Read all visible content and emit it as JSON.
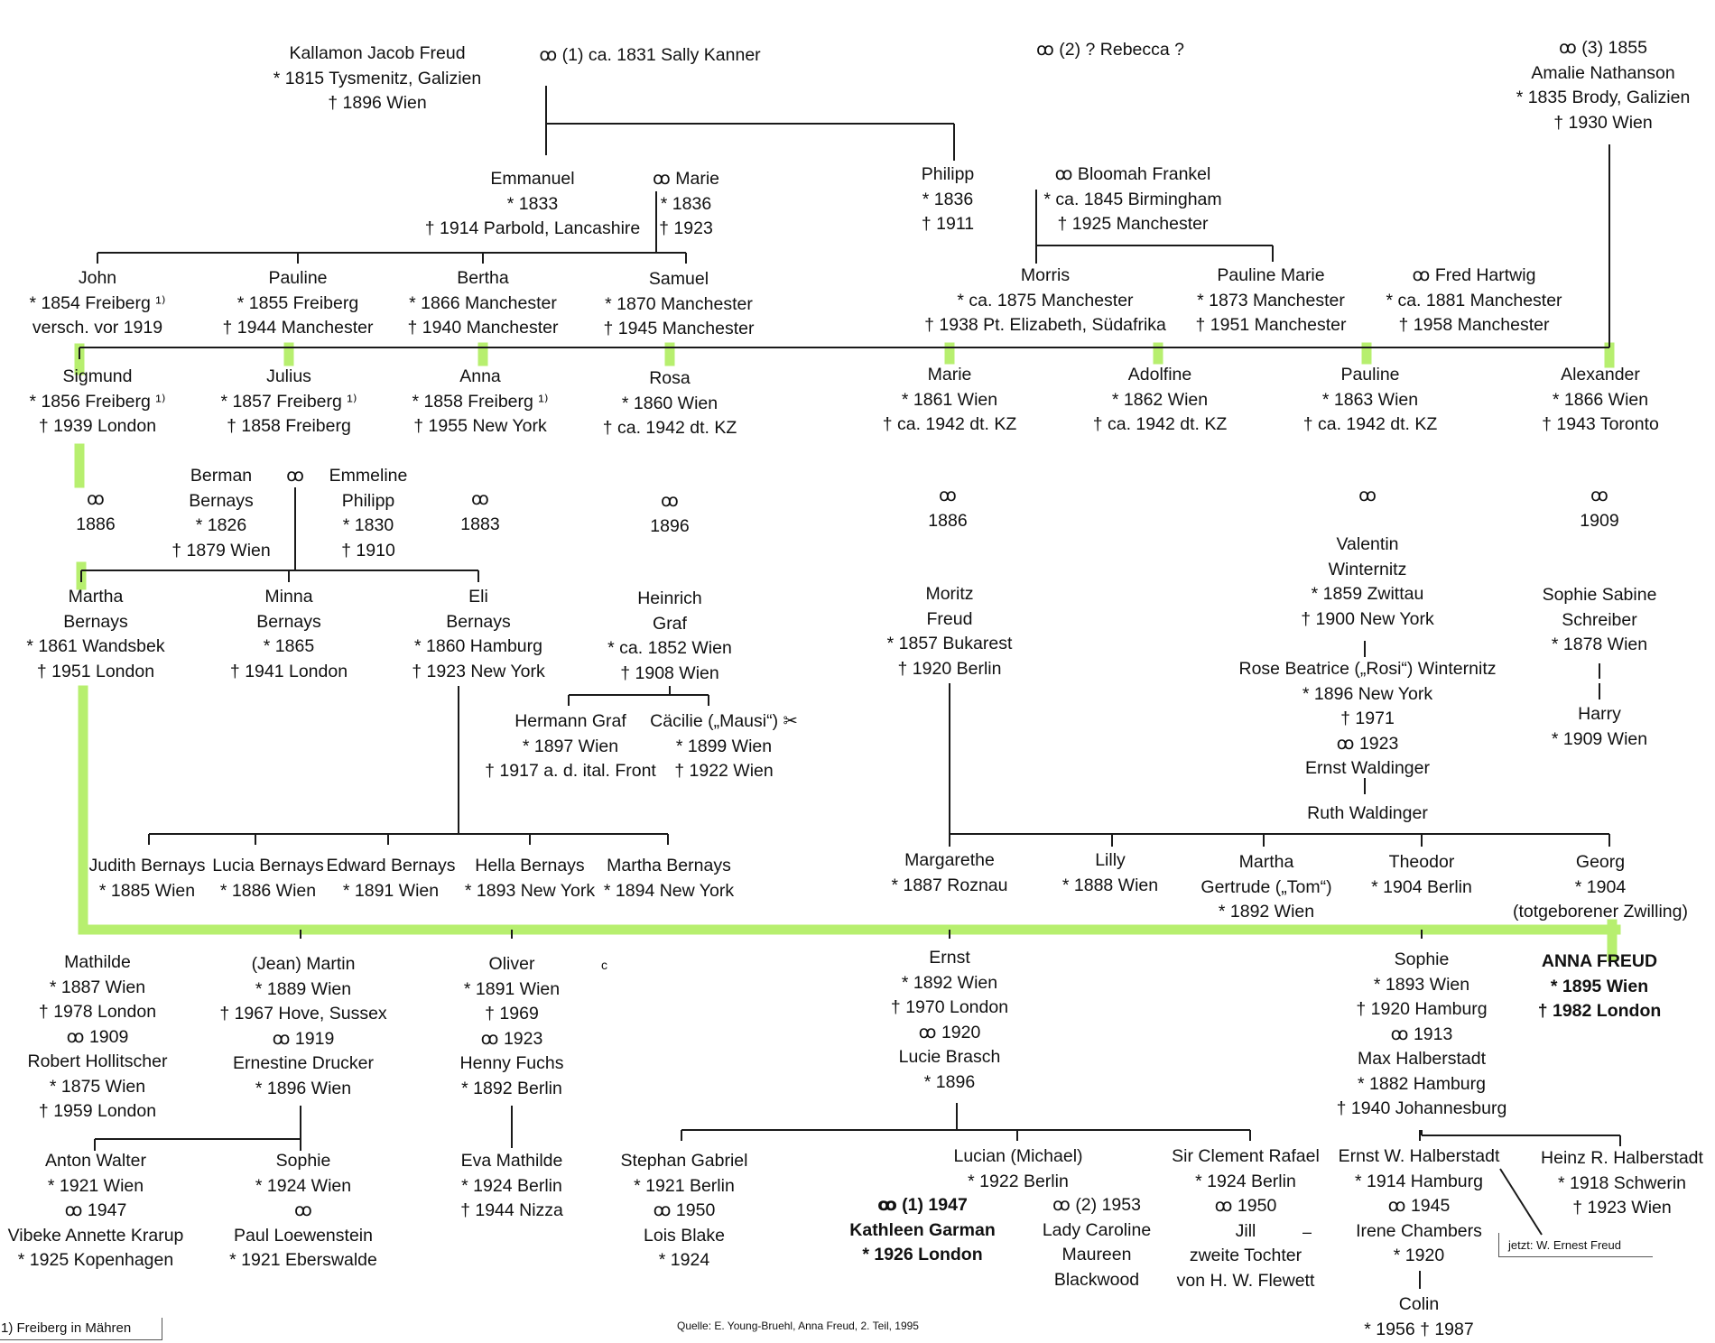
{
  "persons": [
    {
      "id": "kallamon",
      "lines": [
        "Kallamon Jacob Freud",
        "* 1815 Tysmenitz, Galizien",
        "† 1896 Wien"
      ]
    },
    {
      "id": "m1",
      "lines": [
        "ꝏ (1) ca. 1831 Sally Kanner"
      ]
    },
    {
      "id": "m2",
      "lines": [
        "ꝏ (2) ? Rebecca ?"
      ]
    },
    {
      "id": "m3",
      "lines": [
        "ꝏ (3) 1855",
        "Amalie Nathanson",
        "* 1835 Brody, Galizien",
        "† 1930 Wien"
      ]
    },
    {
      "id": "emmanuel",
      "lines": [
        "Emmanuel",
        "* 1833",
        "† 1914 Parbold, Lancashire"
      ]
    },
    {
      "id": "marie-e",
      "lines": [
        "ꝏ Marie",
        "* 1836",
        "† 1923"
      ]
    },
    {
      "id": "philipp",
      "lines": [
        "Philipp",
        "* 1836",
        "† 1911"
      ]
    },
    {
      "id": "bloomah",
      "lines": [
        "ꝏ      Bloomah Frankel",
        "* ca. 1845 Birmingham",
        "† 1925 Manchester"
      ]
    },
    {
      "id": "john",
      "lines": [
        "John",
        "* 1854 Freiberg ¹⁾",
        "versch. vor 1919"
      ]
    },
    {
      "id": "pauline-e",
      "lines": [
        "Pauline",
        "* 1855 Freiberg",
        "† 1944 Manchester"
      ]
    },
    {
      "id": "bertha",
      "lines": [
        "Bertha",
        "* 1866 Manchester",
        "† 1940 Manchester"
      ]
    },
    {
      "id": "samuel",
      "lines": [
        "Samuel",
        "* 1870 Manchester",
        "† 1945 Manchester"
      ]
    },
    {
      "id": "morris",
      "lines": [
        "Morris",
        "* ca. 1875 Manchester",
        "† 1938 Pt. Elizabeth, Südafrika"
      ]
    },
    {
      "id": "pauline-marie",
      "lines": [
        "Pauline Marie",
        "* 1873 Manchester",
        "† 1951 Manchester"
      ]
    },
    {
      "id": "fred",
      "lines": [
        "ꝏ      Fred Hartwig",
        "* ca. 1881 Manchester",
        "† 1958 Manchester"
      ]
    },
    {
      "id": "sigmund",
      "lines": [
        "Sigmund",
        "* 1856 Freiberg ¹⁾",
        "† 1939 London"
      ]
    },
    {
      "id": "julius",
      "lines": [
        "Julius",
        "* 1857 Freiberg ¹⁾",
        "† 1858 Freiberg"
      ]
    },
    {
      "id": "anna",
      "lines": [
        "Anna",
        "* 1858 Freiberg ¹⁾",
        "† 1955 New York"
      ]
    },
    {
      "id": "rosa",
      "lines": [
        "Rosa",
        "* 1860 Wien",
        "† ca. 1942 dt. KZ"
      ]
    },
    {
      "id": "marie",
      "lines": [
        "Marie",
        "* 1861 Wien",
        "† ca. 1942 dt. KZ"
      ]
    },
    {
      "id": "adolfine",
      "lines": [
        "Adolfine",
        "* 1862 Wien",
        "† ca. 1942 dt. KZ"
      ]
    },
    {
      "id": "pauline",
      "lines": [
        "Pauline",
        "* 1863 Wien",
        "† ca. 1942 dt. KZ"
      ]
    },
    {
      "id": "alexander",
      "lines": [
        "Alexander",
        "* 1866 Wien",
        "† 1943 Toronto"
      ]
    },
    {
      "id": "mar-sig",
      "lines": [
        "ꝏ",
        "1886"
      ]
    },
    {
      "id": "berman",
      "lines": [
        "Berman",
        "Bernays",
        "* 1826",
        "† 1879 Wien"
      ]
    },
    {
      "id": "bm-ring",
      "lines": [
        "ꝏ"
      ]
    },
    {
      "id": "emmeline",
      "lines": [
        "Emmeline",
        "Philipp",
        "* 1830",
        "† 1910"
      ]
    },
    {
      "id": "mar-anna",
      "lines": [
        "ꝏ",
        "1883"
      ]
    },
    {
      "id": "mar-rosa",
      "lines": [
        "ꝏ",
        "1896"
      ]
    },
    {
      "id": "mar-marie",
      "lines": [
        "ꝏ",
        "1886"
      ]
    },
    {
      "id": "mar-pauline",
      "lines": [
        "ꝏ"
      ]
    },
    {
      "id": "mar-alex",
      "lines": [
        "ꝏ",
        "1909"
      ]
    },
    {
      "id": "martha",
      "lines": [
        "Martha",
        "Bernays",
        "* 1861 Wandsbek",
        "† 1951 London"
      ]
    },
    {
      "id": "minna",
      "lines": [
        "Minna",
        "Bernays",
        "* 1865",
        "† 1941 London"
      ]
    },
    {
      "id": "eli",
      "lines": [
        "Eli",
        "Bernays",
        "* 1860 Hamburg",
        "† 1923 New York"
      ]
    },
    {
      "id": "heinrich",
      "lines": [
        "Heinrich",
        "Graf",
        "* ca. 1852 Wien",
        "† 1908 Wien"
      ]
    },
    {
      "id": "moritz",
      "lines": [
        "Moritz",
        "Freud",
        "* 1857 Bukarest",
        "† 1920 Berlin"
      ]
    },
    {
      "id": "valentin",
      "lines": [
        "Valentin",
        "Winternitz",
        "* 1859 Zwittau",
        "† 1900 New York"
      ]
    },
    {
      "id": "sophie-sabine",
      "lines": [
        "Sophie Sabine",
        "Schreiber",
        "* 1878 Wien"
      ]
    },
    {
      "id": "hermann",
      "lines": [
        "Hermann Graf",
        "* 1897 Wien",
        "† 1917 a. d. ital. Front"
      ]
    },
    {
      "id": "caecilie",
      "lines": [
        "Cäcilie („Mausi“) ✂",
        "* 1899 Wien",
        "† 1922 Wien"
      ]
    },
    {
      "id": "rosi",
      "lines": [
        "Rose Beatrice („Rosi“) Winternitz",
        "* 1896 New York",
        "† 1971",
        "ꝏ 1923",
        "Ernst Waldinger"
      ]
    },
    {
      "id": "harry",
      "lines": [
        "Harry",
        "* 1909 Wien"
      ]
    },
    {
      "id": "ruth",
      "lines": [
        "Ruth Waldinger"
      ]
    },
    {
      "id": "judith",
      "lines": [
        "Judith Bernays",
        "* 1885 Wien"
      ]
    },
    {
      "id": "lucia",
      "lines": [
        "Lucia Bernays",
        "* 1886 Wien"
      ]
    },
    {
      "id": "edward",
      "lines": [
        "Edward Bernays",
        "* 1891 Wien"
      ]
    },
    {
      "id": "hella",
      "lines": [
        "Hella Bernays",
        "* 1893 New York"
      ]
    },
    {
      "id": "martha-b",
      "lines": [
        "Martha Bernays",
        "* 1894 New York"
      ]
    },
    {
      "id": "margarethe",
      "lines": [
        "Margarethe",
        "* 1887 Roznau"
      ]
    },
    {
      "id": "lilly",
      "lines": [
        "Lilly",
        "* 1888 Wien"
      ]
    },
    {
      "id": "martha-tom",
      "lines": [
        "Martha",
        "Gertrude („Tom“)",
        "* 1892 Wien"
      ]
    },
    {
      "id": "theodor",
      "lines": [
        "Theodor",
        "* 1904 Berlin"
      ]
    },
    {
      "id": "georg",
      "lines": [
        "Georg",
        "* 1904",
        "(totgeborener Zwilling)"
      ]
    },
    {
      "id": "mathilde",
      "lines": [
        "Mathilde",
        "* 1887 Wien",
        "† 1978 London",
        "ꝏ 1909",
        "Robert Hollitscher",
        "* 1875 Wien",
        "† 1959 London"
      ]
    },
    {
      "id": "martin",
      "lines": [
        "(Jean) Martin",
        "* 1889 Wien",
        "† 1967 Hove, Sussex",
        "ꝏ 1919",
        "Ernestine Drucker",
        "* 1896 Wien"
      ]
    },
    {
      "id": "oliver",
      "lines": [
        "Oliver",
        "* 1891 Wien",
        "† 1969",
        "ꝏ 1923",
        "Henny Fuchs",
        "* 1892 Berlin"
      ]
    },
    {
      "id": "ernst",
      "lines": [
        "Ernst",
        "* 1892 Wien",
        "† 1970 London",
        "ꝏ 1920",
        "Lucie Brasch",
        "* 1896"
      ]
    },
    {
      "id": "sophie",
      "lines": [
        "Sophie",
        "* 1893 Wien",
        "† 1920 Hamburg",
        "ꝏ 1913",
        "Max Halberstadt",
        "* 1882 Hamburg",
        "† 1940 Johannesburg"
      ]
    },
    {
      "id": "anna-freud",
      "lines": [
        "ANNA FREUD",
        "* 1895 Wien",
        "† 1982 London"
      ]
    },
    {
      "id": "anton",
      "lines": [
        "Anton Walter",
        "* 1921 Wien",
        "ꝏ 1947",
        "Vibeke Annette Krarup",
        "* 1925 Kopenhagen"
      ]
    },
    {
      "id": "sophie-m",
      "lines": [
        "Sophie",
        "* 1924 Wien",
        "ꝏ",
        "Paul Loewenstein",
        "* 1921 Eberswalde"
      ]
    },
    {
      "id": "eva",
      "lines": [
        "Eva Mathilde",
        "* 1924 Berlin",
        "† 1944 Nizza"
      ]
    },
    {
      "id": "stephan",
      "lines": [
        "Stephan Gabriel",
        "* 1921 Berlin",
        "ꝏ 1950",
        "Lois Blake",
        "* 1924"
      ]
    },
    {
      "id": "lucian",
      "lines": [
        "Lucian (Michael)",
        "* 1922 Berlin"
      ]
    },
    {
      "id": "kathleen",
      "lines": [
        "ꝏ (1) 1947",
        "Kathleen Garman",
        "* 1926 London"
      ]
    },
    {
      "id": "caroline",
      "lines": [
        "ꝏ (2) 1953",
        "Lady Caroline",
        "Maureen",
        "Blackwood"
      ]
    },
    {
      "id": "clement",
      "lines": [
        "Sir Clement Rafael",
        "* 1924 Berlin",
        "ꝏ 1950",
        "Jill",
        "zweite Tochter",
        "von H. W. Flewett"
      ]
    },
    {
      "id": "ernst-h",
      "lines": [
        "Ernst W. Halberstadt",
        "* 1914 Hamburg",
        "ꝏ 1945",
        "Irene Chambers",
        "* 1920"
      ]
    },
    {
      "id": "heinz",
      "lines": [
        "Heinz R. Halberstadt",
        "* 1918 Schwerin",
        "† 1923 Wien"
      ]
    },
    {
      "id": "colin",
      "lines": [
        "Colin",
        "* 1956 † 1987"
      ]
    }
  ],
  "notes": {
    "dash": "–",
    "jetzt": "jetzt: W. Ernest Freud",
    "footnote": "1) Freiberg in Mähren",
    "source": "Quelle: E. Young-Bruehl, Anna Freud, 2. Teil, 1995",
    "c_mark": "c"
  },
  "colors": {
    "highlight": "#b7ef6f",
    "line": "#1a1a1a"
  }
}
